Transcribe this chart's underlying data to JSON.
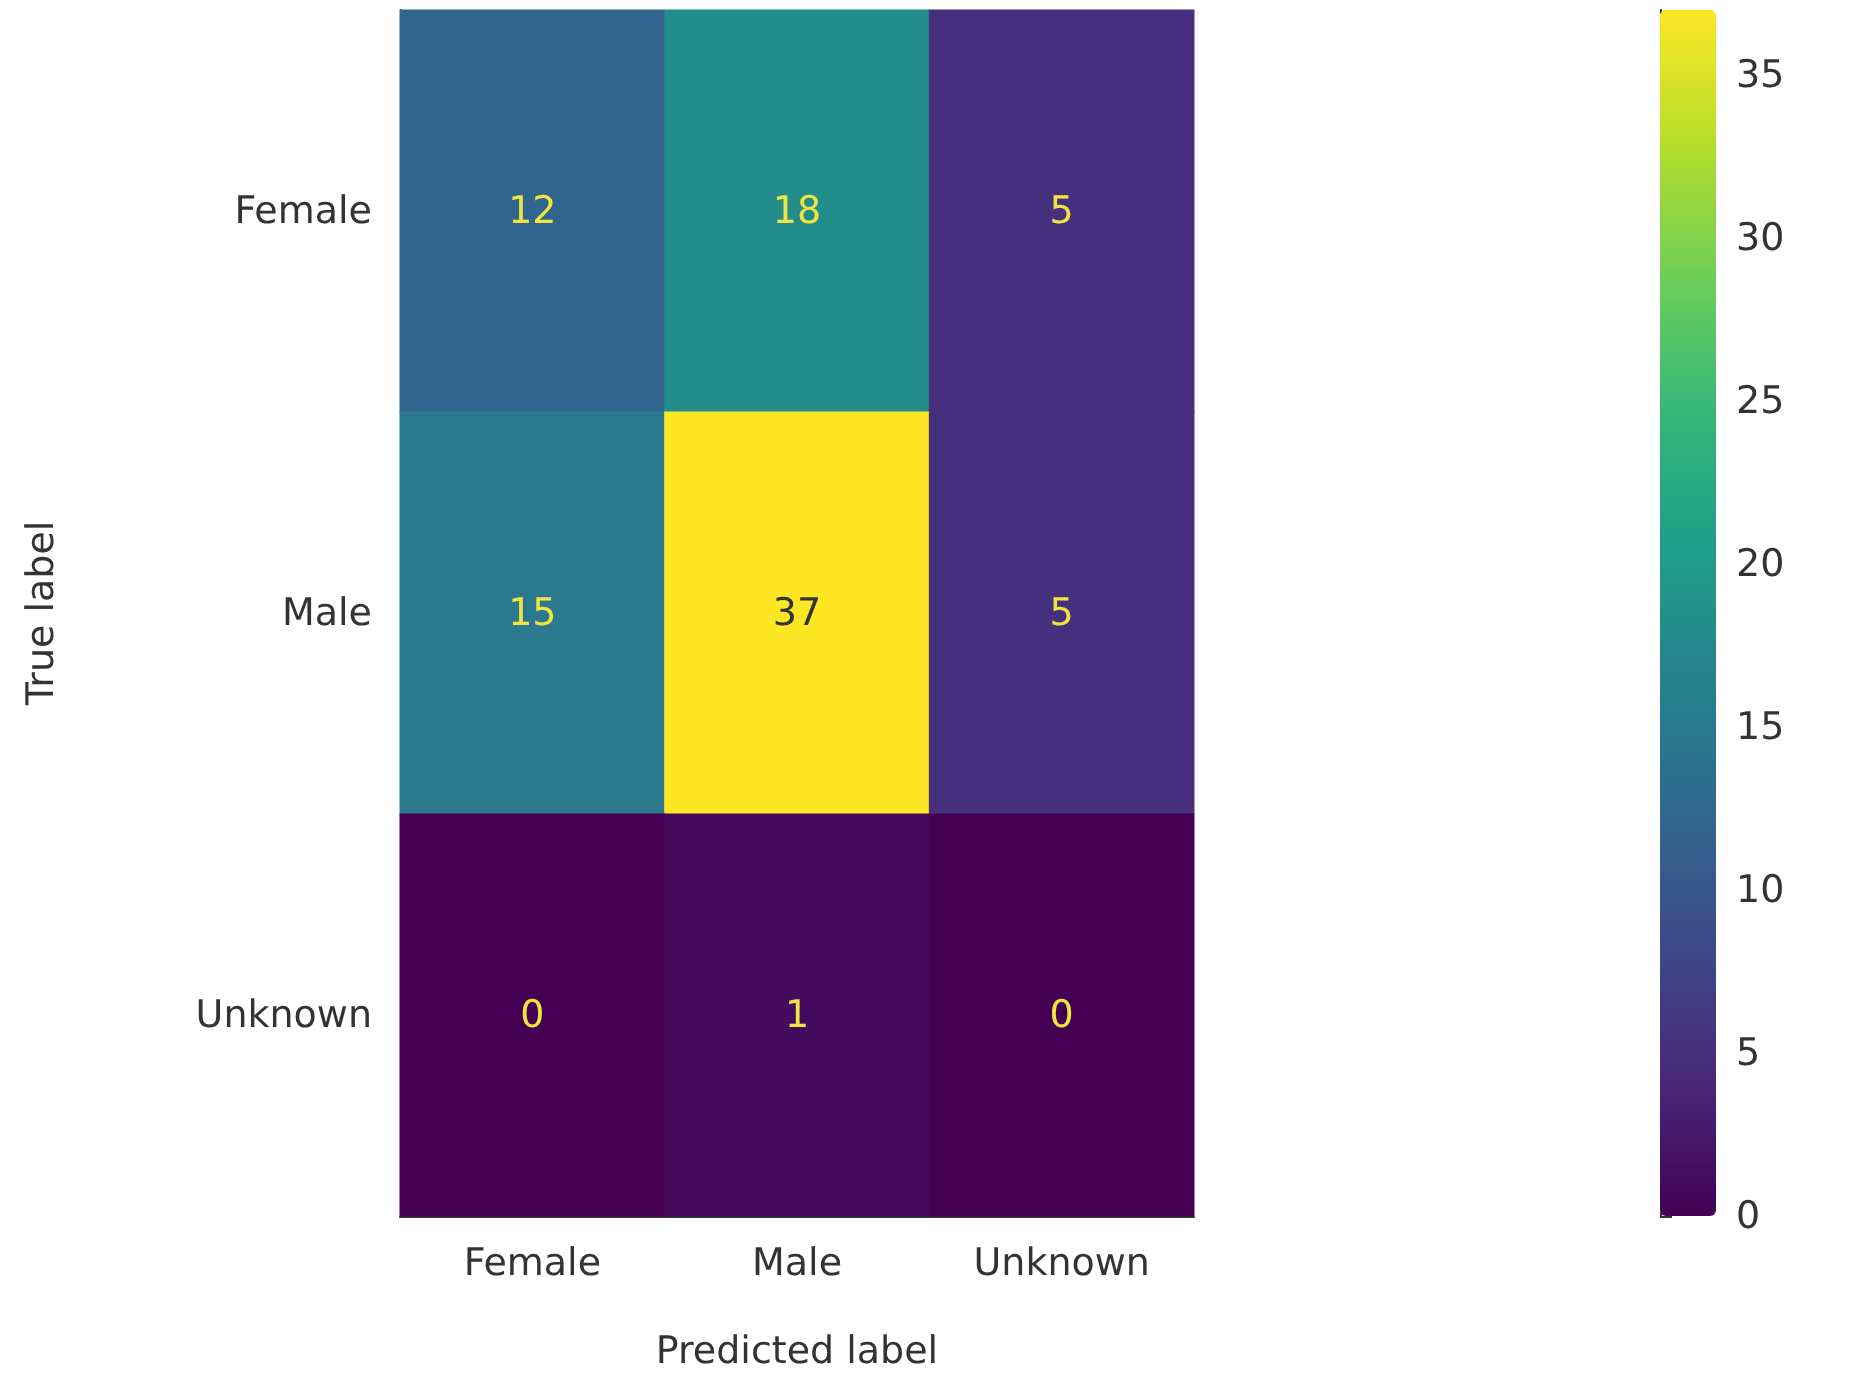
{
  "chart_data": {
    "type": "heatmap",
    "xlabel": "Predicted label",
    "ylabel": "True label",
    "categories": [
      "Female",
      "Male",
      "Unknown"
    ],
    "y_categories": [
      "Female",
      "Male",
      "Unknown"
    ],
    "cells": [
      [
        12,
        18,
        5
      ],
      [
        15,
        37,
        5
      ],
      [
        0,
        1,
        0
      ]
    ],
    "clim": [
      0,
      37
    ],
    "cticks": [
      0,
      5,
      10,
      15,
      20,
      25,
      30,
      35
    ],
    "data_labels": true
  }
}
